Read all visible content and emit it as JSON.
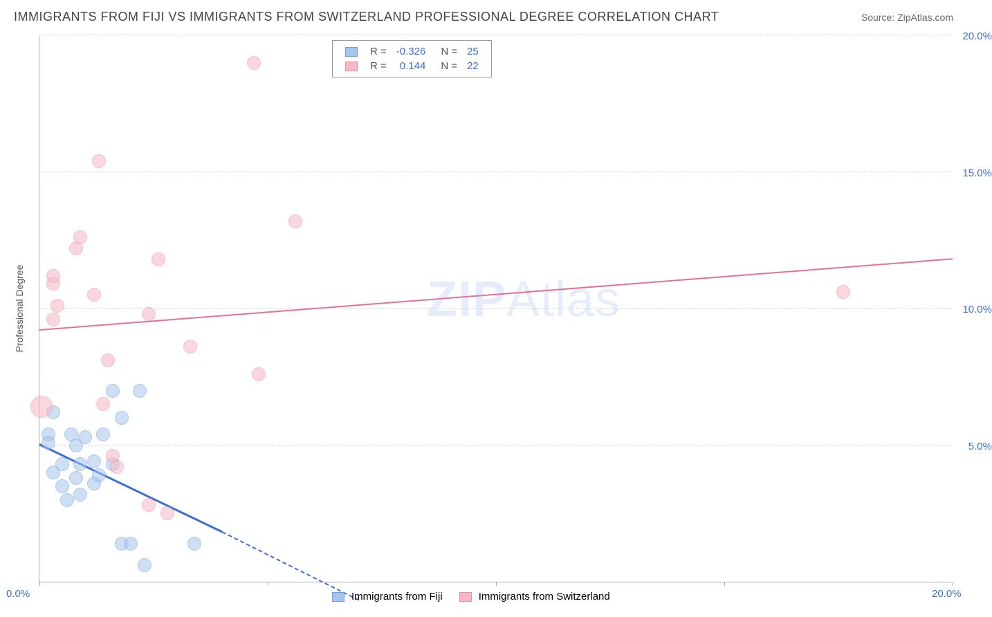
{
  "title": "IMMIGRANTS FROM FIJI VS IMMIGRANTS FROM SWITZERLAND PROFESSIONAL DEGREE CORRELATION CHART",
  "source": "Source: ZipAtlas.com",
  "ylabel": "Professional Degree",
  "watermark_a": "ZIP",
  "watermark_b": "Atlas",
  "chart": {
    "type": "scatter",
    "background_color": "#ffffff",
    "grid_color": "#d5d5d5",
    "xlim": [
      0,
      20
    ],
    "ylim": [
      0,
      20
    ],
    "x_ticks": [
      0,
      5,
      10,
      15,
      20
    ],
    "x_tick_labels": [
      "0.0%",
      "",
      "",
      "",
      "20.0%"
    ],
    "y_ticks": [
      5,
      10,
      15,
      20
    ],
    "y_tick_labels": [
      "5.0%",
      "10.0%",
      "15.0%",
      "20.0%"
    ],
    "axis_label_color": "#3a6fd8",
    "axis_label_fontsize": 15,
    "series": [
      {
        "name": "Immigrants from Fiji",
        "fill": "#a7c5ec",
        "stroke": "#6d9fe3",
        "fill_opacity": 0.55,
        "marker_radius": 10,
        "R": "-0.326",
        "N": "25",
        "trend": {
          "x1": 0,
          "y1": 5.0,
          "x2": 4.0,
          "y2": 1.8,
          "dash_to_x": 7.0,
          "dash_to_y": -0.7,
          "color": "#3a6fd8",
          "width": 3
        },
        "points": [
          {
            "x": 0.2,
            "y": 5.4
          },
          {
            "x": 0.2,
            "y": 5.1
          },
          {
            "x": 0.3,
            "y": 4.0
          },
          {
            "x": 0.5,
            "y": 3.5
          },
          {
            "x": 0.5,
            "y": 4.3
          },
          {
            "x": 0.6,
            "y": 3.0
          },
          {
            "x": 0.7,
            "y": 5.4
          },
          {
            "x": 0.8,
            "y": 3.8
          },
          {
            "x": 0.8,
            "y": 5.0
          },
          {
            "x": 0.9,
            "y": 4.3
          },
          {
            "x": 0.9,
            "y": 3.2
          },
          {
            "x": 1.0,
            "y": 5.3
          },
          {
            "x": 1.2,
            "y": 3.6
          },
          {
            "x": 1.2,
            "y": 4.4
          },
          {
            "x": 1.3,
            "y": 3.9
          },
          {
            "x": 1.4,
            "y": 5.4
          },
          {
            "x": 1.6,
            "y": 7.0
          },
          {
            "x": 1.6,
            "y": 4.3
          },
          {
            "x": 1.8,
            "y": 1.4
          },
          {
            "x": 1.8,
            "y": 6.0
          },
          {
            "x": 2.0,
            "y": 1.4
          },
          {
            "x": 2.2,
            "y": 7.0
          },
          {
            "x": 2.3,
            "y": 0.6
          },
          {
            "x": 3.4,
            "y": 1.4
          },
          {
            "x": 0.3,
            "y": 6.2
          }
        ]
      },
      {
        "name": "Immigrants from Switzerland",
        "fill": "#f6b8c6",
        "stroke": "#ed8ba4",
        "fill_opacity": 0.55,
        "marker_radius": 10,
        "R": "0.144",
        "N": "22",
        "trend": {
          "x1": 0,
          "y1": 9.2,
          "x2": 20,
          "y2": 11.8,
          "color": "#e86f93",
          "width": 2
        },
        "points": [
          {
            "x": 0.05,
            "y": 6.4,
            "r": 16
          },
          {
            "x": 0.3,
            "y": 9.6
          },
          {
            "x": 0.3,
            "y": 10.9
          },
          {
            "x": 0.3,
            "y": 11.2
          },
          {
            "x": 0.8,
            "y": 12.2
          },
          {
            "x": 0.9,
            "y": 12.6
          },
          {
            "x": 1.2,
            "y": 10.5
          },
          {
            "x": 1.3,
            "y": 15.4
          },
          {
            "x": 1.4,
            "y": 6.5
          },
          {
            "x": 1.5,
            "y": 8.1
          },
          {
            "x": 1.6,
            "y": 4.6
          },
          {
            "x": 1.7,
            "y": 4.2
          },
          {
            "x": 2.4,
            "y": 9.8
          },
          {
            "x": 2.4,
            "y": 2.8
          },
          {
            "x": 2.6,
            "y": 11.8
          },
          {
            "x": 2.8,
            "y": 2.5
          },
          {
            "x": 3.3,
            "y": 8.6
          },
          {
            "x": 4.7,
            "y": 19.0
          },
          {
            "x": 4.8,
            "y": 7.6
          },
          {
            "x": 5.6,
            "y": 13.2
          },
          {
            "x": 17.6,
            "y": 10.6
          },
          {
            "x": 0.4,
            "y": 10.1
          }
        ]
      }
    ]
  },
  "legend_top": {
    "R_label": "R =",
    "N_label": "N ="
  },
  "legend_bottom": {
    "items": [
      "Immigrants from Fiji",
      "Immigrants from Switzerland"
    ]
  }
}
